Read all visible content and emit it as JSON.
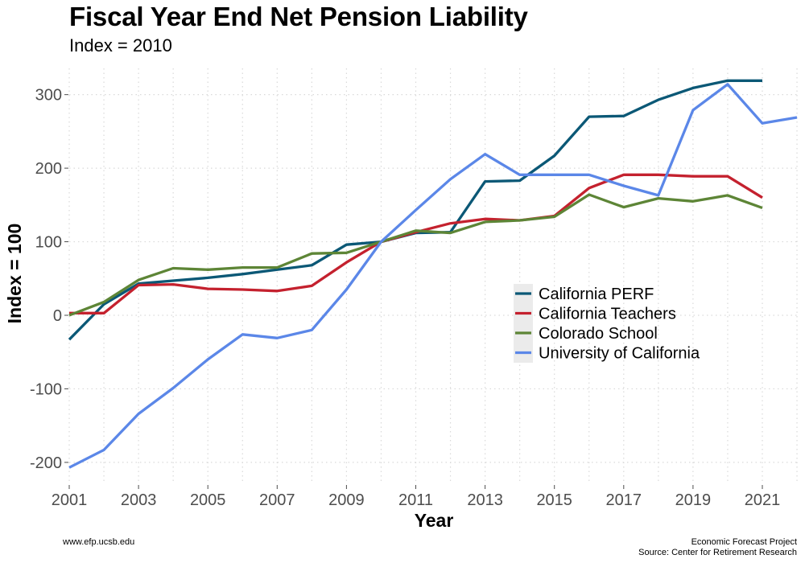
{
  "chart_data": {
    "type": "line",
    "title": "Fiscal Year End Net Pension Liability",
    "subtitle": "Index = 2010",
    "xlabel": "Year",
    "ylabel": "Index = 100",
    "xlim": [
      2001,
      2022
    ],
    "ylim": [
      -230,
      345
    ],
    "x_ticks": [
      2001,
      2003,
      2005,
      2007,
      2009,
      2011,
      2013,
      2015,
      2017,
      2019,
      2021
    ],
    "y_ticks": [
      -200,
      -100,
      0,
      100,
      200,
      300
    ],
    "grid": true,
    "legend_position": "right-middle",
    "x": [
      2001,
      2002,
      2003,
      2004,
      2005,
      2006,
      2007,
      2008,
      2009,
      2010,
      2011,
      2012,
      2013,
      2014,
      2015,
      2016,
      2017,
      2018,
      2019,
      2020,
      2021,
      2022
    ],
    "series": [
      {
        "name": "California PERF",
        "color": "#0b5876",
        "values": [
          -33,
          15,
          43,
          47,
          51,
          56,
          62,
          68,
          96,
          100,
          112,
          113,
          182,
          183,
          217,
          270,
          271,
          293,
          309,
          319,
          319,
          null
        ]
      },
      {
        "name": "California Teachers",
        "color": "#c4212e",
        "values": [
          3,
          3,
          41,
          42,
          36,
          35,
          33,
          40,
          72,
          100,
          113,
          125,
          131,
          129,
          135,
          173,
          191,
          191,
          189,
          189,
          160,
          null
        ]
      },
      {
        "name": "Colorado School",
        "color": "#5d8536",
        "values": [
          0,
          18,
          48,
          64,
          62,
          65,
          65,
          84,
          85,
          100,
          115,
          112,
          127,
          129,
          134,
          164,
          147,
          159,
          155,
          163,
          146,
          null
        ]
      },
      {
        "name": "University of California",
        "color": "#5b87e8",
        "values": [
          -207,
          -183,
          -134,
          -99,
          -60,
          -26,
          -31,
          -20,
          35,
          100,
          143,
          185,
          219,
          191,
          191,
          191,
          176,
          163,
          279,
          314,
          261,
          269
        ]
      }
    ]
  },
  "footer": {
    "left": "www.efp.ucsb.edu",
    "right_line1": "Economic Forecast Project",
    "right_line2": "Source: Center for Retirement Research"
  }
}
